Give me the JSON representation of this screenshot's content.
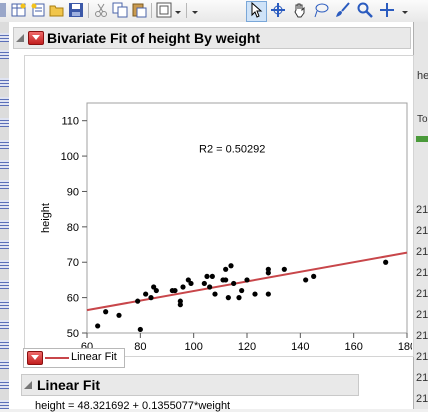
{
  "toolbar": {
    "icons": [
      "new-table-icon",
      "new-script-icon",
      "open-icon",
      "save-icon",
      "cut-icon",
      "copy-icon",
      "paste-icon",
      "layout-icon",
      "dropdown-icon",
      "arrow-tool-icon",
      "crosshair-tool-icon",
      "hand-tool-icon",
      "lasso-tool-icon",
      "brush-tool-icon",
      "magnifier-tool-icon",
      "plus-tool-icon",
      "dropdown-icon"
    ]
  },
  "report": {
    "title": "Bivariate Fit of height By weight",
    "fit_legend_label": "Linear Fit",
    "linear_fit_heading": "Linear Fit",
    "equation": "height = 48.321692 + 0.1355077*weight"
  },
  "right_panel": {
    "items": [
      "he",
      "To",
      "21",
      "21",
      "21",
      "21",
      "21",
      "21",
      "21",
      "21",
      "21",
      "21"
    ]
  },
  "chart_data": {
    "type": "scatter",
    "xlabel": "weight",
    "ylabel": "height",
    "xlim": [
      60,
      180
    ],
    "ylim": [
      50,
      115
    ],
    "x_ticks": [
      60,
      80,
      100,
      120,
      140,
      160,
      180
    ],
    "y_ticks": [
      50,
      60,
      70,
      80,
      90,
      100,
      110
    ],
    "annotation": "R2 = 0.50292",
    "fit_line": {
      "intercept": 48.321692,
      "slope": 0.1355077,
      "color": "#c8464a"
    },
    "point_color": "#000000",
    "points": [
      [
        64,
        52
      ],
      [
        67,
        56
      ],
      [
        72,
        55
      ],
      [
        79,
        59
      ],
      [
        80,
        51
      ],
      [
        82,
        61
      ],
      [
        84,
        60
      ],
      [
        85,
        63
      ],
      [
        86,
        62
      ],
      [
        92,
        62
      ],
      [
        93,
        62
      ],
      [
        95,
        58
      ],
      [
        95,
        59
      ],
      [
        96,
        63
      ],
      [
        98,
        65
      ],
      [
        99,
        64
      ],
      [
        104,
        64
      ],
      [
        105,
        66
      ],
      [
        106,
        63
      ],
      [
        107,
        66
      ],
      [
        108,
        61
      ],
      [
        111,
        65
      ],
      [
        112,
        65
      ],
      [
        112,
        68
      ],
      [
        113,
        60
      ],
      [
        114,
        69
      ],
      [
        115,
        64
      ],
      [
        117,
        60
      ],
      [
        118,
        62
      ],
      [
        120,
        65
      ],
      [
        123,
        61
      ],
      [
        128,
        61
      ],
      [
        128,
        67
      ],
      [
        128,
        68
      ],
      [
        134,
        68
      ],
      [
        142,
        65
      ],
      [
        145,
        66
      ],
      [
        172,
        70
      ]
    ]
  }
}
